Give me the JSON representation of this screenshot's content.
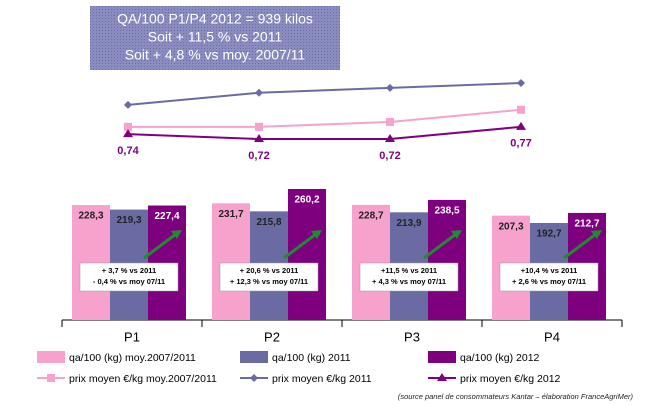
{
  "chart_data": {
    "type": "bar",
    "summary": [
      "QA/100 P1/P4 2012 = 939 kilos",
      "Soit + 11,5 % vs 2011",
      "Soit + 4,8 % vs moy. 2007/11"
    ],
    "categories": [
      "P1",
      "P2",
      "P3",
      "P4"
    ],
    "series": [
      {
        "name": "qa/100 (kg) moy.2007/2011",
        "color": "#f7a1cd",
        "values": [
          228.3,
          231.7,
          228.7,
          207.3
        ],
        "value_labels": [
          "228,3",
          "231,7",
          "228,7",
          "207,3"
        ]
      },
      {
        "name": "qa/100 (kg) 2011",
        "color": "#6b6ba3",
        "values": [
          219.3,
          215.8,
          213.9,
          192.7
        ],
        "value_labels": [
          "219,3",
          "215,8",
          "213,9",
          "192,7"
        ]
      },
      {
        "name": "qa/100 (kg) 2012",
        "color": "#7f007f",
        "values": [
          227.4,
          260.2,
          238.5,
          212.7
        ],
        "value_labels": [
          "227,4",
          "260,2",
          "238,5",
          "212,7"
        ]
      }
    ],
    "line_series": [
      {
        "name": "prix moyen €/kg moy.2007/2011",
        "color": "#f7a1cd",
        "marker": "square",
        "values": [
          0.77,
          0.77,
          0.79,
          0.84
        ]
      },
      {
        "name": "prix moyen €/kg 2011",
        "color": "#6b6ba3",
        "marker": "diamond",
        "values": [
          0.86,
          0.91,
          0.93,
          0.95
        ]
      },
      {
        "name": "prix moyen €/kg 2012",
        "color": "#7f007f",
        "marker": "triangle",
        "values": [
          0.74,
          0.72,
          0.72,
          0.77
        ],
        "value_labels": [
          "0,74",
          "0,72",
          "0,72",
          "0,77"
        ]
      }
    ],
    "category_notes": [
      [
        "+ 3,7 % vs 2011",
        "- 0,4 % vs moy 07/11"
      ],
      [
        "+ 20,6 % vs 2011",
        "+ 12,3 % vs moy 07/11"
      ],
      [
        "+11,5 % vs 2011",
        "+ 4,3 % vs moy 07/11"
      ],
      [
        "+10,4 % vs 2011",
        "+ 2,6 % vs moy 07/11"
      ]
    ],
    "source": "(source panel de consommateurs Kantar – élaboration FranceAgriMer)"
  }
}
